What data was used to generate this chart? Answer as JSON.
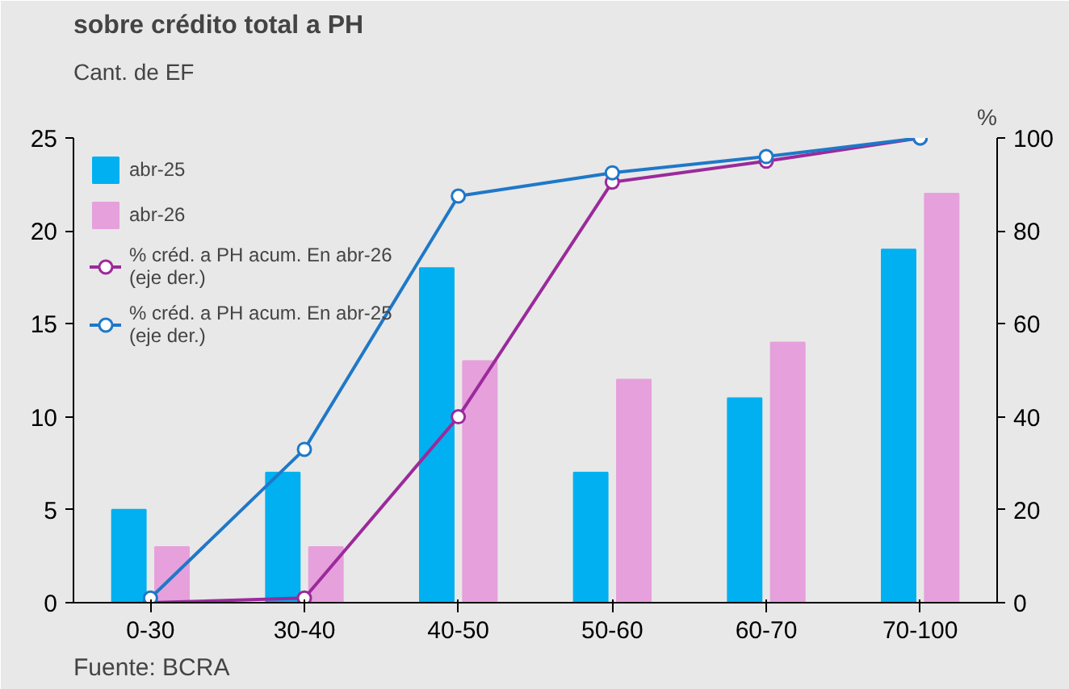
{
  "chart_data": {
    "type": "bar",
    "title": "sobre crédito total a PH",
    "ylabel": "Cant. de EF",
    "y2label": "%",
    "categories": [
      "0-30",
      "30-40",
      "40-50",
      "50-60",
      "60-70",
      "70-100"
    ],
    "series": [
      {
        "name": "abr-25",
        "color": "#00b0f0",
        "values": [
          5,
          7,
          18,
          7,
          11,
          19
        ]
      },
      {
        "name": "abr-26",
        "color": "#e6a0dc",
        "values": [
          3,
          3,
          13,
          12,
          14,
          22
        ]
      },
      {
        "name": "% créd. a PH acum. En abr-26 (eje der.)",
        "type": "line",
        "axis": "y2",
        "color": "#9b2a9b",
        "values": [
          0,
          1,
          40,
          90.5,
          95,
          100
        ]
      },
      {
        "name": "% créd. a PH acum. En abr-25 (eje der.)",
        "type": "line",
        "axis": "y2",
        "color": "#1f78c8",
        "values": [
          1,
          33,
          87.5,
          92.5,
          96,
          100
        ]
      }
    ],
    "ylim": [
      0,
      25
    ],
    "yticks": [
      0,
      5,
      10,
      15,
      20,
      25
    ],
    "y2lim": [
      0,
      100
    ],
    "y2ticks": [
      0,
      20,
      40,
      60,
      80,
      100
    ],
    "marker": "circle",
    "legend": "top left",
    "annotations": [
      "Fuente: BCRA"
    ]
  }
}
